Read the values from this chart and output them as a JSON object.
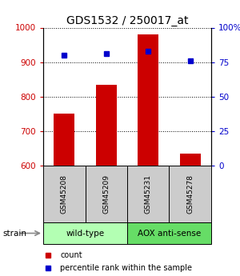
{
  "title": "GDS1532 / 250017_at",
  "samples": [
    "GSM45208",
    "GSM45209",
    "GSM45231",
    "GSM45278"
  ],
  "counts": [
    750,
    835,
    980,
    635
  ],
  "percentiles": [
    80,
    81,
    83,
    76
  ],
  "ylim_left": [
    600,
    1000
  ],
  "ylim_right": [
    0,
    100
  ],
  "yticks_left": [
    600,
    700,
    800,
    900,
    1000
  ],
  "yticks_right": [
    0,
    25,
    50,
    75,
    100
  ],
  "ytick_labels_right": [
    "0",
    "25",
    "50",
    "75",
    "100%"
  ],
  "bar_color": "#cc0000",
  "dot_color": "#0000cc",
  "bar_width": 0.5,
  "groups": [
    {
      "label": "wild-type",
      "samples": [
        0,
        1
      ],
      "color": "#b3ffb3"
    },
    {
      "label": "AOX anti-sense",
      "samples": [
        2,
        3
      ],
      "color": "#66dd66"
    }
  ],
  "strain_label": "strain",
  "legend_count_label": "count",
  "legend_pct_label": "percentile rank within the sample",
  "background_color": "#ffffff",
  "title_fontsize": 10,
  "tick_fontsize": 7.5,
  "sample_box_color": "#cccccc"
}
